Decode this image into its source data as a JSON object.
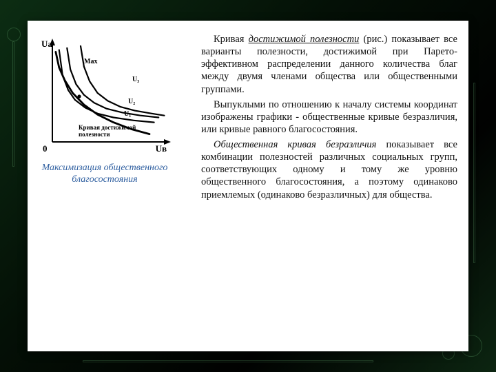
{
  "figure": {
    "caption": "Максимизация общественного благосостояния",
    "chart": {
      "type": "line",
      "background_color": "#ffffff",
      "axis_color": "#000000",
      "curve_color": "#000000",
      "curve_width": 2.2,
      "axes": {
        "x_label": "Uв",
        "y_label": "Uа",
        "origin_label": "0",
        "xlim": [
          0,
          10
        ],
        "ylim": [
          0,
          10
        ]
      },
      "annotations": {
        "max_label": "Max",
        "frontier_label_1": "Кривая достижимой",
        "frontier_label_2": "полезности"
      },
      "frontier": {
        "label": "frontier",
        "points_xy": [
          [
            0.3,
            9.2
          ],
          [
            0.6,
            7.6
          ],
          [
            1.1,
            6.3
          ],
          [
            1.8,
            5.0
          ],
          [
            2.8,
            3.8
          ],
          [
            4.0,
            2.8
          ],
          [
            5.4,
            2.0
          ],
          [
            7.0,
            1.3
          ],
          [
            8.6,
            0.8
          ]
        ]
      },
      "indifference": [
        {
          "label": "U₁",
          "points_xy": [
            [
              0.6,
              9.4
            ],
            [
              0.9,
              6.8
            ],
            [
              1.4,
              5.3
            ],
            [
              2.0,
              4.3
            ],
            [
              2.9,
              3.5
            ],
            [
              4.0,
              2.9
            ],
            [
              5.4,
              2.5
            ],
            [
              7.2,
              2.2
            ],
            [
              9.0,
              2.0
            ]
          ]
        },
        {
          "label": "U₂",
          "points_xy": [
            [
              1.3,
              9.6
            ],
            [
              1.6,
              7.4
            ],
            [
              2.1,
              5.9
            ],
            [
              2.8,
              4.8
            ],
            [
              3.7,
              4.0
            ],
            [
              4.8,
              3.4
            ],
            [
              6.2,
              3.0
            ],
            [
              7.8,
              2.7
            ],
            [
              9.4,
              2.5
            ]
          ]
        },
        {
          "label": "U₃",
          "points_xy": [
            [
              2.5,
              9.8
            ],
            [
              2.8,
              7.7
            ],
            [
              3.3,
              6.2
            ],
            [
              4.0,
              5.0
            ],
            [
              4.9,
              4.2
            ],
            [
              6.0,
              3.6
            ],
            [
              7.3,
              3.2
            ],
            [
              8.8,
              2.9
            ],
            [
              9.9,
              2.7
            ]
          ]
        }
      ]
    }
  },
  "text": {
    "p1_lead": "Кривая ",
    "p1_term": "достижимой полезности",
    "p1_rest": " (рис.) показывает все варианты полезности, достижимой при Парето-эффективном распределении данного количества благ между двумя членами общества или общественными группами.",
    "p2": "Выпуклыми по отношению к началу системы координат изображены графики - общественные кривые безразличия, или кривые равного благосостояния.",
    "p3_term": "Общественная кривая безразличия",
    "p3_rest": " показывает все комбинации полезностей различных социальных групп, соответствующих одному и тому же уровню общественного благосостояния, а поэтому одинаково приемлемых (одинаково безразличных) для общества."
  },
  "colors": {
    "page_bg": "#0b1a0d",
    "panel_bg": "#ffffff",
    "body_text": "#111111",
    "caption_text": "#2f5fa0"
  }
}
